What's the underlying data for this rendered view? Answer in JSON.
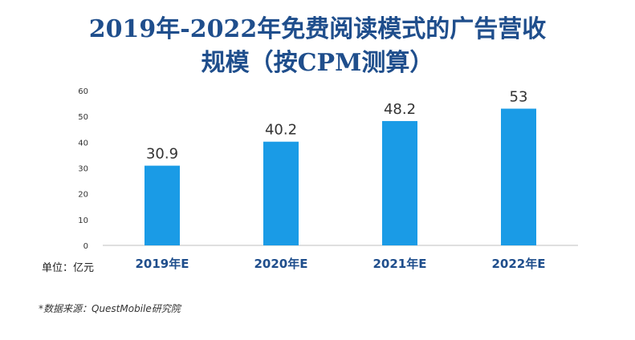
{
  "chart_data": {
    "type": "bar",
    "title": "2019年-2022年免费阅读模式的广告营收",
    "subtitle": "规模（按CPM测算）",
    "categories": [
      "2019年E",
      "2020年E",
      "2021年E",
      "2022年E"
    ],
    "values": [
      30.9,
      40.2,
      48.2,
      53
    ],
    "data_labels": [
      "30.9",
      "40.2",
      "48.2",
      "53"
    ],
    "y_ticks": [
      "0",
      "10",
      "20",
      "30",
      "40",
      "50",
      "60"
    ],
    "ylim": [
      0,
      60
    ],
    "unit_label": "单位：亿元",
    "grid": false,
    "bar_color": "#1a9be6"
  },
  "source_note": "*数据来源：QuestMobile研究院"
}
